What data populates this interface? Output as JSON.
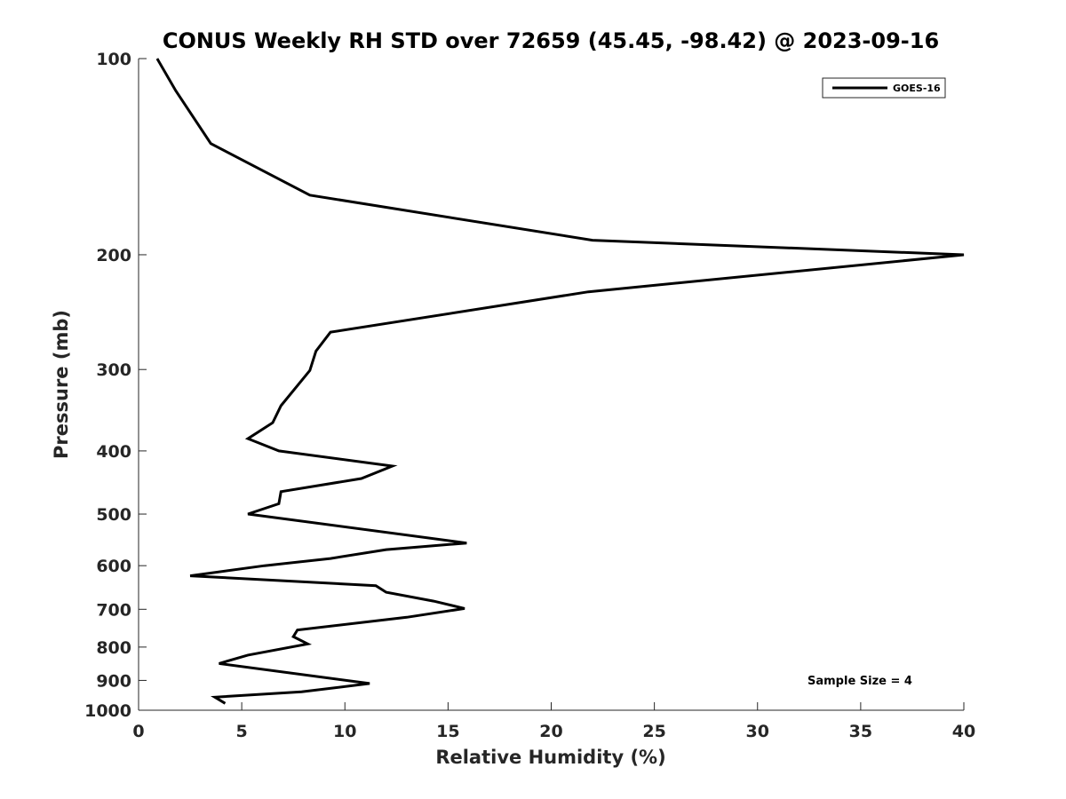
{
  "chart_data": {
    "type": "line",
    "title": "CONUS Weekly RH STD over 72659 (45.45, -98.42) @ 2023-09-16",
    "xlabel": "Relative Humidity (%)",
    "ylabel": "Pressure (mb)",
    "xlim": [
      0,
      40
    ],
    "ylim": [
      100,
      1000
    ],
    "yscale": "log",
    "yreversed": true,
    "x_ticks": [
      0,
      5,
      10,
      15,
      20,
      25,
      30,
      35,
      40
    ],
    "y_ticks": [
      100,
      200,
      300,
      400,
      500,
      600,
      700,
      800,
      900,
      1000
    ],
    "grid": false,
    "legend": {
      "position": "top-right",
      "entries": [
        "GOES-16"
      ]
    },
    "annotation": "Sample Size = 4",
    "series": [
      {
        "name": "GOES-16",
        "color": "#000000",
        "x": [
          0.9,
          1.8,
          3.5,
          8.3,
          22.0,
          40.0,
          21.8,
          9.3,
          8.6,
          8.3,
          6.9,
          6.5,
          5.3,
          6.8,
          12.3,
          10.8,
          6.9,
          6.8,
          5.3,
          15.9,
          12.0,
          9.3,
          6.1,
          2.5,
          11.5,
          12.0,
          14.3,
          15.8,
          13.0,
          7.7,
          7.5,
          8.2,
          5.3,
          3.9,
          11.2,
          7.9,
          3.7,
          4.2
        ],
        "y": [
          100,
          112,
          135,
          162,
          190,
          200,
          228,
          263,
          281,
          301,
          341,
          362,
          383,
          400,
          422,
          441,
          462,
          482,
          500,
          554,
          567,
          585,
          600,
          622,
          644,
          659,
          680,
          698,
          720,
          753,
          771,
          791,
          823,
          848,
          910,
          937,
          955,
          976
        ]
      }
    ]
  }
}
